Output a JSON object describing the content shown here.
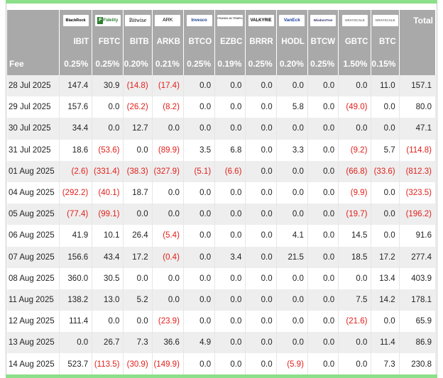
{
  "header": {
    "total_label": "Total",
    "fee_label": "Fee",
    "logos": [
      {
        "icon": "blackrock-logo",
        "text": "BlackRock"
      },
      {
        "icon": "fidelity-logo",
        "text": "Fidelity"
      },
      {
        "icon": "bitwise-logo",
        "text": "Bitwise"
      },
      {
        "icon": "ark-logo",
        "text": "ARK"
      },
      {
        "icon": "invesco-logo",
        "text": "Invesco"
      },
      {
        "icon": "franklin-templeton-logo",
        "text": "FRANKLIN TEMPLETON"
      },
      {
        "icon": "valkyrie-logo",
        "text": "VALKYRIE"
      },
      {
        "icon": "vaneck-logo",
        "text": "VanEck"
      },
      {
        "icon": "wisdomtree-logo",
        "text": "WisdomTree"
      },
      {
        "icon": "grayscale-logo",
        "text": "GRAYSCALE"
      },
      {
        "icon": "grayscale-logo",
        "text": "GRAYSCALE"
      }
    ],
    "tickers": [
      "IBIT",
      "FBTC",
      "BITB",
      "ARKB",
      "BTCO",
      "EZBC",
      "BRRR",
      "HODL",
      "BTCW",
      "GBTC",
      "BTC"
    ],
    "fees": [
      "0.25%",
      "0.25%",
      "0.20%",
      "0.21%",
      "0.25%",
      "0.19%",
      "0.25%",
      "0.20%",
      "0.25%",
      "1.50%",
      "0.15%"
    ]
  },
  "rows": [
    {
      "date": "28 Jul 2025",
      "values": [
        "147.4",
        "30.9",
        "(14.8)",
        "(17.4)",
        "0.0",
        "0.0",
        "0.0",
        "0.0",
        "0.0",
        "0.0",
        "11.0"
      ],
      "total": "157.1"
    },
    {
      "date": "29 Jul 2025",
      "values": [
        "157.6",
        "0.0",
        "(26.2)",
        "(8.2)",
        "0.0",
        "0.0",
        "0.0",
        "5.8",
        "0.0",
        "(49.0)",
        "0.0"
      ],
      "total": "80.0"
    },
    {
      "date": "30 Jul 2025",
      "values": [
        "34.4",
        "0.0",
        "12.7",
        "0.0",
        "0.0",
        "0.0",
        "0.0",
        "0.0",
        "0.0",
        "0.0",
        "0.0"
      ],
      "total": "47.1"
    },
    {
      "date": "31 Jul 2025",
      "values": [
        "18.6",
        "(53.6)",
        "0.0",
        "(89.9)",
        "3.5",
        "6.8",
        "0.0",
        "3.3",
        "0.0",
        "(9.2)",
        "5.7"
      ],
      "total": "(114.8)"
    },
    {
      "date": "01 Aug 2025",
      "values": [
        "(2.6)",
        "(331.4)",
        "(38.3)",
        "(327.9)",
        "(5.1)",
        "(6.6)",
        "0.0",
        "0.0",
        "0.0",
        "(66.8)",
        "(33.6)"
      ],
      "total": "(812.3)"
    },
    {
      "date": "04 Aug 2025",
      "values": [
        "(292.2)",
        "(40.1)",
        "18.7",
        "0.0",
        "0.0",
        "0.0",
        "0.0",
        "0.0",
        "0.0",
        "(9.9)",
        "0.0"
      ],
      "total": "(323.5)"
    },
    {
      "date": "05 Aug 2025",
      "values": [
        "(77.4)",
        "(99.1)",
        "0.0",
        "0.0",
        "0.0",
        "0.0",
        "0.0",
        "0.0",
        "0.0",
        "(19.7)",
        "0.0"
      ],
      "total": "(196.2)"
    },
    {
      "date": "06 Aug 2025",
      "values": [
        "41.9",
        "10.1",
        "26.4",
        "(5.4)",
        "0.0",
        "0.0",
        "0.0",
        "4.1",
        "0.0",
        "14.5",
        "0.0"
      ],
      "total": "91.6"
    },
    {
      "date": "07 Aug 2025",
      "values": [
        "156.6",
        "43.4",
        "17.2",
        "(0.4)",
        "0.0",
        "3.4",
        "0.0",
        "21.5",
        "0.0",
        "18.5",
        "17.2"
      ],
      "total": "277.4"
    },
    {
      "date": "08 Aug 2025",
      "values": [
        "360.0",
        "30.5",
        "0.0",
        "0.0",
        "0.0",
        "0.0",
        "0.0",
        "0.0",
        "0.0",
        "0.0",
        "13.4"
      ],
      "total": "403.9"
    },
    {
      "date": "11 Aug 2025",
      "values": [
        "138.2",
        "13.0",
        "5.2",
        "0.0",
        "0.0",
        "0.0",
        "0.0",
        "0.0",
        "0.0",
        "7.5",
        "14.2"
      ],
      "total": "178.1"
    },
    {
      "date": "12 Aug 2025",
      "values": [
        "111.4",
        "0.0",
        "0.0",
        "(23.9)",
        "0.0",
        "0.0",
        "0.0",
        "0.0",
        "0.0",
        "(21.6)",
        "0.0"
      ],
      "total": "65.9"
    },
    {
      "date": "13 Aug 2025",
      "values": [
        "0.0",
        "26.7",
        "7.3",
        "36.6",
        "4.9",
        "0.0",
        "0.0",
        "0.0",
        "0.0",
        "0.0",
        "11.4"
      ],
      "total": "86.9"
    },
    {
      "date": "14 Aug 2025",
      "values": [
        "523.7",
        "(113.5)",
        "(30.9)",
        "(149.9)",
        "0.0",
        "0.0",
        "0.0",
        "(5.9)",
        "0.0",
        "0.0",
        "7.3"
      ],
      "total": "230.8"
    }
  ],
  "colors": {
    "header_bg": "#a9a9a9",
    "alt_row_bg": "#eeeeee",
    "negative": "#e0201b",
    "accent_bar": "#8ce08a"
  }
}
